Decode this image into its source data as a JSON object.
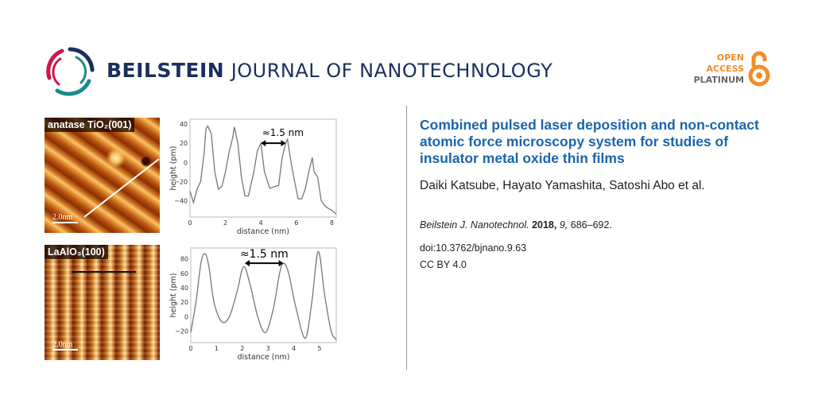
{
  "header": {
    "journal_bold": "BEILSTEIN",
    "journal_rest": "JOURNAL OF NANOTECHNOLOGY",
    "open_access": [
      "OPEN",
      "ACCESS",
      "PLATINUM"
    ],
    "colors": {
      "navy": "#1c2e5e",
      "crimson": "#c8184a",
      "teal": "#1a8a8a",
      "orange": "#f28c28",
      "gray": "#666666"
    }
  },
  "article": {
    "title": "Combined pulsed laser deposition and non-contact atomic force microscopy system for studies of insulator metal oxide thin films",
    "authors": "Daiki Katsube, Hayato Yamashita, Satoshi Abo et al.",
    "journal_abbrev": "Beilstein J. Nanotechnol.",
    "year": "2018,",
    "volume": "9,",
    "pages": "686–692.",
    "doi": "doi:10.3762/bjnano.9.63",
    "license": "CC BY 4.0",
    "title_color": "#1a64ad"
  },
  "figure": {
    "images": [
      {
        "label": "anatase TiO₂(001)",
        "scale_bar": "2.0nm"
      },
      {
        "label": "LaAlO₃(100)",
        "scale_bar": "2.0nm"
      }
    ]
  },
  "chart_data": [
    {
      "type": "line",
      "xlabel": "distance (nm)",
      "ylabel": "height (pm)",
      "xlim": [
        0,
        8.25
      ],
      "ylim": [
        -57,
        45
      ],
      "xticks": [
        0,
        2,
        4,
        6,
        8
      ],
      "yticks": [
        -40,
        -20,
        0,
        20,
        40
      ],
      "annotation": {
        "text": "≈1.5 nm",
        "x_from": 4.0,
        "x_to": 5.4,
        "y": 20
      },
      "x": [
        0,
        0.2,
        0.4,
        0.6,
        0.8,
        0.9,
        1.0,
        1.2,
        1.4,
        1.6,
        1.8,
        2.0,
        2.2,
        2.4,
        2.5,
        2.7,
        2.9,
        3.1,
        3.3,
        3.6,
        3.8,
        4.0,
        4.2,
        4.5,
        5.0,
        5.2,
        5.4,
        5.5,
        5.7,
        5.9,
        6.1,
        6.3,
        6.5,
        6.7,
        6.9,
        7.0,
        7.2,
        7.4,
        7.6,
        7.8,
        8.0,
        8.25
      ],
      "y": [
        -30,
        -42,
        -28,
        -20,
        10,
        35,
        38,
        30,
        -10,
        -28,
        -25,
        -10,
        10,
        25,
        37,
        20,
        -15,
        -35,
        -35,
        -10,
        12,
        20,
        -10,
        -27,
        -24,
        5,
        20,
        24,
        0,
        -20,
        -38,
        -38,
        -28,
        -10,
        5,
        -10,
        -15,
        -40,
        -45,
        -48,
        -50,
        -54
      ]
    },
    {
      "type": "line",
      "xlabel": "distance (nm)",
      "ylabel": "height (pm)",
      "xlim": [
        0,
        5.65
      ],
      "ylim": [
        -36,
        95
      ],
      "xticks": [
        0,
        1,
        2,
        3,
        4,
        5
      ],
      "yticks": [
        -20,
        0,
        20,
        40,
        60,
        80
      ],
      "annotation": {
        "text": "≈1.5 nm",
        "x_from": 2.1,
        "x_to": 3.6,
        "y": 74
      },
      "x": [
        0,
        0.2,
        0.4,
        0.55,
        0.7,
        0.9,
        1.2,
        1.5,
        1.8,
        2.05,
        2.3,
        2.6,
        2.9,
        3.2,
        3.45,
        3.6,
        3.8,
        4.1,
        4.45,
        4.7,
        4.95,
        5.2,
        5.45,
        5.65
      ],
      "y": [
        -22,
        20,
        75,
        87,
        70,
        20,
        -7,
        0,
        35,
        69,
        45,
        0,
        -22,
        10,
        60,
        74,
        60,
        10,
        -30,
        20,
        90,
        30,
        -20,
        -32
      ]
    }
  ]
}
